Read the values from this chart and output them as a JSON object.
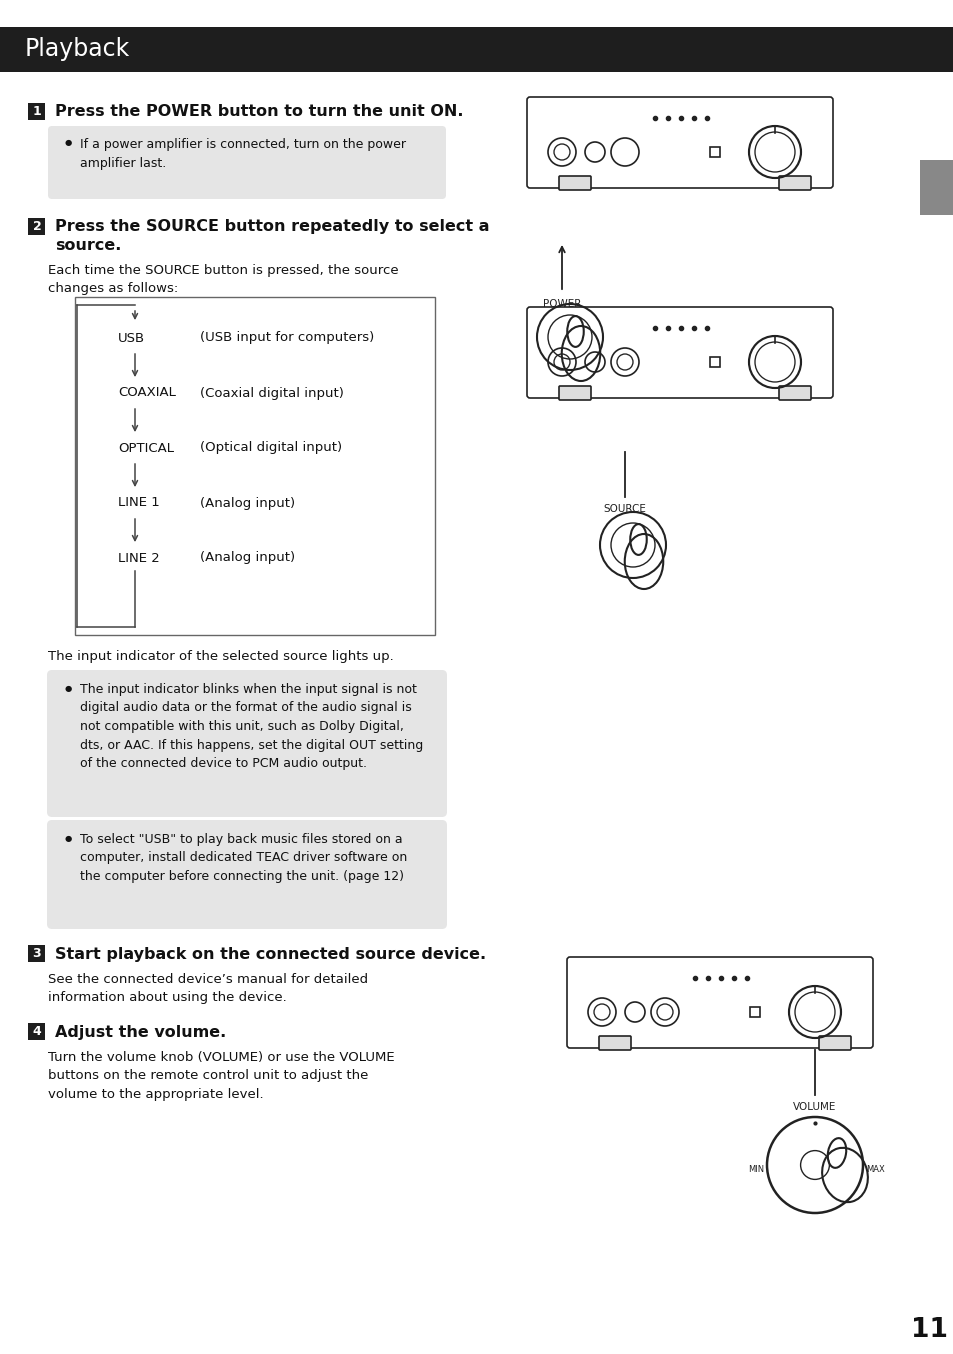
{
  "title": "Playback",
  "title_bg": "#1e1e1e",
  "title_color": "#ffffff",
  "title_fontsize": 17,
  "page_bg": "#ffffff",
  "page_number": "11",
  "step1_heading": "Press the POWER button to turn the unit ON.",
  "step1_note": "If a power amplifier is connected, turn on the power\namplifier last.",
  "step2_heading_line1": "Press the SOURCE button repeatedly to select a",
  "step2_heading_line2": "source.",
  "step2_body": "Each time the SOURCE button is pressed, the source\nchanges as follows:",
  "source_items": [
    [
      "USB",
      "(USB input for computers)"
    ],
    [
      "COAXIAL",
      "(Coaxial digital input)"
    ],
    [
      "OPTICAL",
      "(Optical digital input)"
    ],
    [
      "LINE 1",
      "(Analog input)"
    ],
    [
      "LINE 2",
      "(Analog input)"
    ]
  ],
  "step2_note1_line1": "The input indicator blinks when the input signal is not",
  "step2_note1_line2": "digital audio data or the format of the audio signal is",
  "step2_note1_line3": "not compatible with this unit, such as Dolby Digital,",
  "step2_note1_line4": "dts, or AAC. If this happens, set the digital OUT setting",
  "step2_note1_line5": "of the connected device to PCM audio output.",
  "step2_note2_line1": "To select \"USB\" to play back music files stored on a",
  "step2_note2_line2": "computer, install dedicated TEAC driver software on",
  "step2_note2_line3": "the computer before connecting the unit. (page 12)",
  "step3_heading": "Start playback on the connected source device.",
  "step3_body_line1": "See the connected device’s manual for detailed",
  "step3_body_line2": "information about using the device.",
  "step4_heading": "Adjust the volume.",
  "step4_body_line1": "Turn the volume knob (VOLUME) or use the VOLUME",
  "step4_body_line2": "buttons on the remote control unit to adjust the",
  "step4_body_line3": "volume to the appropriate level.",
  "note_bg": "#e5e5e5",
  "box_border": "#555555",
  "arrow_color": "#444444",
  "text_color": "#111111",
  "gray_text": "#555555",
  "body_fontsize": 9.5,
  "note_fontsize": 9.0,
  "heading_fontsize": 11.5,
  "step_num_bg": "#1e1e1e",
  "step_num_color": "#ffffff",
  "device_color": "#222222",
  "tab_color": "#888888"
}
